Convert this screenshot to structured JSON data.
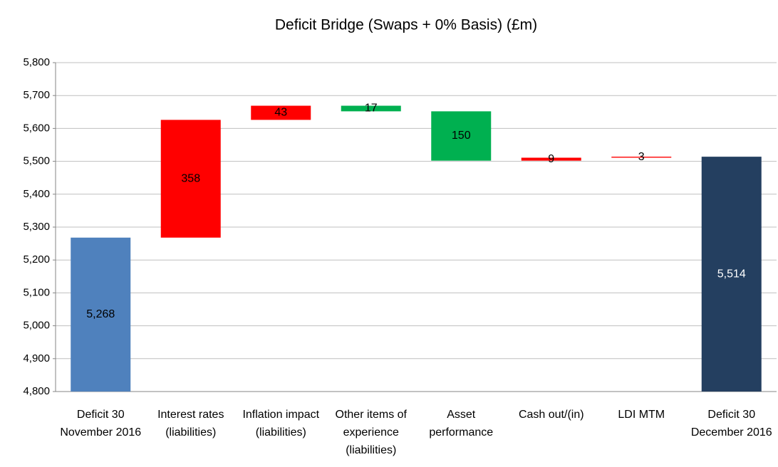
{
  "chart_data": {
    "type": "waterfall",
    "title": "Deficit Bridge (Swaps + 0% Basis) (£m)",
    "categories": [
      "Deficit 30 November 2016",
      "Interest rates (liabilities)",
      "Inflation impact (liabilities)",
      "Other items of experience (liabilities)",
      "Asset performance",
      "Cash out/(in)",
      "LDI MTM",
      "Deficit 30 December 2016"
    ],
    "measure": [
      "absolute",
      "relative",
      "relative",
      "relative",
      "relative",
      "relative",
      "relative",
      "total"
    ],
    "values": [
      5268,
      358,
      43,
      -17,
      -150,
      9,
      3,
      5514
    ],
    "value_labels": [
      "5,268",
      "358",
      "43",
      "17",
      "150",
      "9",
      "3",
      "5,514"
    ],
    "colors": [
      "#4f81bd",
      "#ff0000",
      "#ff0000",
      "#00b050",
      "#00b050",
      "#ff0000",
      "#ff0000",
      "#243f60"
    ],
    "value_label_colors": [
      "#000000",
      "#000000",
      "#000000",
      "#000000",
      "#000000",
      "#000000",
      "#000000",
      "#ffffff"
    ],
    "ylim": [
      4800,
      5800
    ],
    "yticks": [
      {
        "value": 4800,
        "label": "4,800"
      },
      {
        "value": 4900,
        "label": "4,900"
      },
      {
        "value": 5000,
        "label": "5,000"
      },
      {
        "value": 5100,
        "label": "5,100"
      },
      {
        "value": 5200,
        "label": "5,200"
      },
      {
        "value": 5300,
        "label": "5,300"
      },
      {
        "value": 5400,
        "label": "5,400"
      },
      {
        "value": 5500,
        "label": "5,500"
      },
      {
        "value": 5600,
        "label": "5,600"
      },
      {
        "value": 5700,
        "label": "5,700"
      },
      {
        "value": 5800,
        "label": "5,800"
      }
    ],
    "grid": true
  }
}
